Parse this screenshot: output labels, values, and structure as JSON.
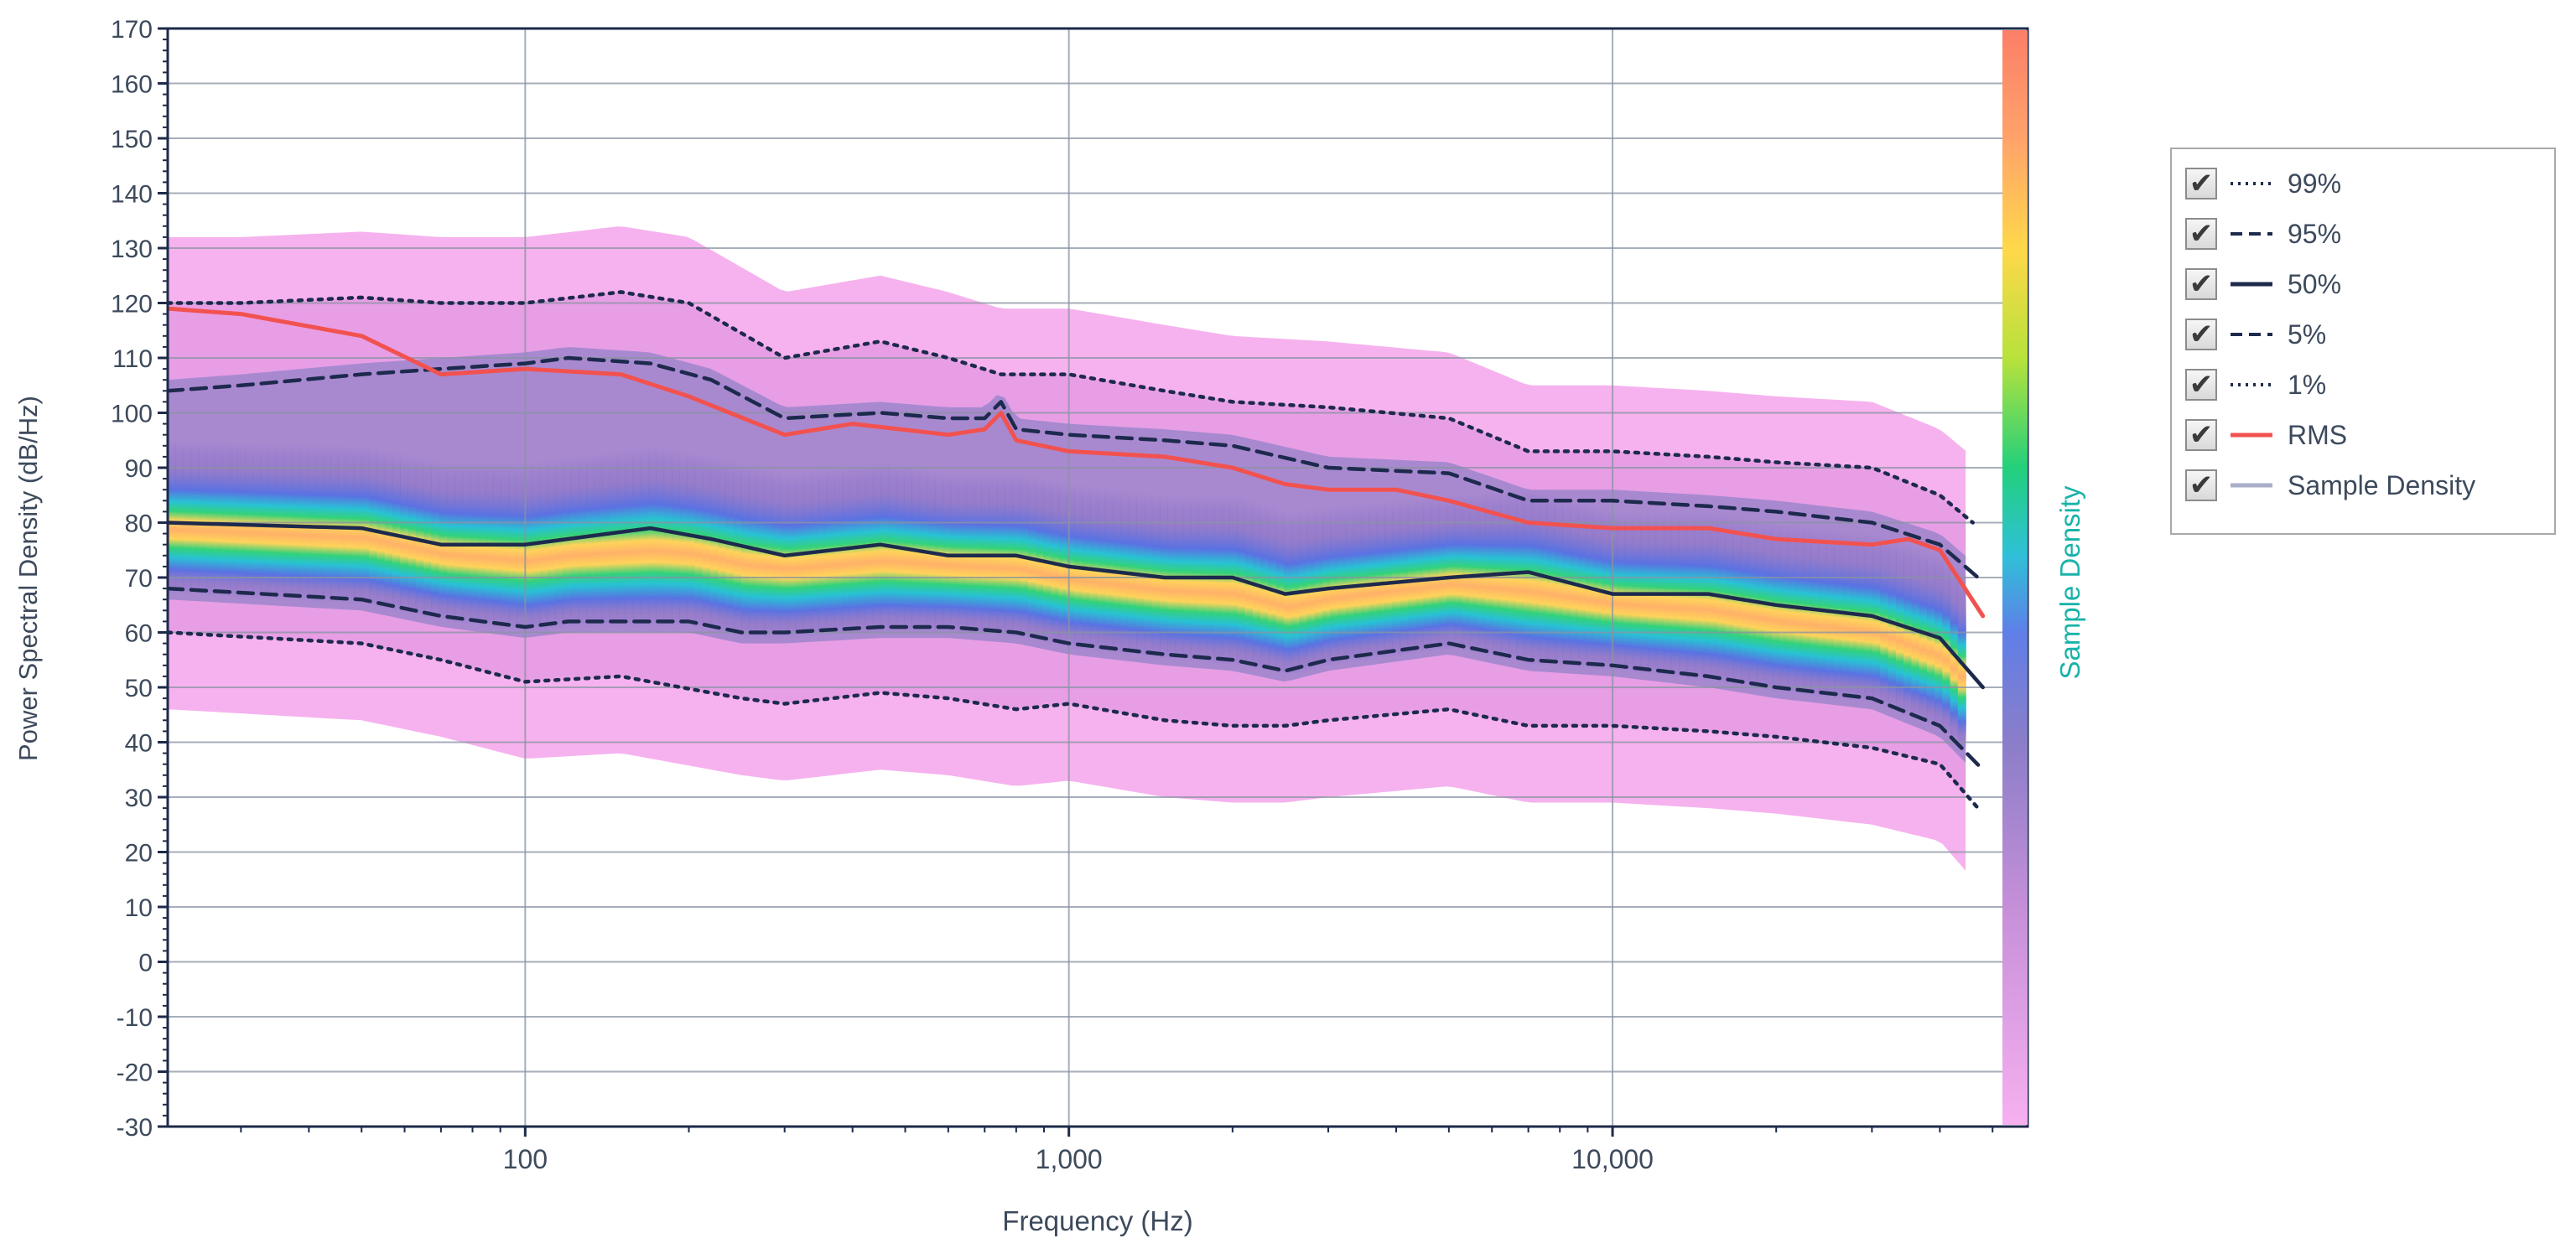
{
  "chart_data": {
    "type": "heatmap",
    "title": "",
    "xlabel": "Frequency (Hz)",
    "ylabel": "Power Spectral Density (dB/Hz)",
    "colorbar_label": "Sample Density",
    "x_scale": "log",
    "xlim": [
      22,
      58000
    ],
    "ylim": [
      -30,
      170
    ],
    "x_ticks": [
      {
        "value": 100,
        "label": "100"
      },
      {
        "value": 1000,
        "label": "1,000"
      },
      {
        "value": 10000,
        "label": "10,000"
      }
    ],
    "y_ticks": [
      {
        "value": 170,
        "label": "170"
      },
      {
        "value": 160,
        "label": "160"
      },
      {
        "value": 150,
        "label": "150"
      },
      {
        "value": 140,
        "label": "140"
      },
      {
        "value": 130,
        "label": "130"
      },
      {
        "value": 120,
        "label": "120"
      },
      {
        "value": 110,
        "label": "110"
      },
      {
        "value": 100,
        "label": "100"
      },
      {
        "value": 90,
        "label": "90"
      },
      {
        "value": 80,
        "label": "80"
      },
      {
        "value": 70,
        "label": "70"
      },
      {
        "value": 60,
        "label": "60"
      },
      {
        "value": 50,
        "label": "50"
      },
      {
        "value": 40,
        "label": "40"
      },
      {
        "value": 30,
        "label": "30"
      },
      {
        "value": 20,
        "label": "20"
      },
      {
        "value": 10,
        "label": "10"
      },
      {
        "value": 0,
        "label": "0"
      },
      {
        "value": -10,
        "label": "-10"
      },
      {
        "value": -20,
        "label": "-20"
      },
      {
        "value": -30,
        "label": "-30"
      }
    ],
    "grid": true,
    "legend_position": "right",
    "series": [
      {
        "name": "99%",
        "style": "dotted",
        "color": "#1d2a4d",
        "x": [
          22,
          30,
          50,
          70,
          100,
          150,
          200,
          300,
          450,
          600,
          750,
          1000,
          1500,
          2000,
          3000,
          5000,
          7000,
          10000,
          15000,
          20000,
          30000,
          40000,
          46000
        ],
        "y": [
          120,
          120,
          121,
          120,
          120,
          122,
          120,
          110,
          113,
          110,
          107,
          107,
          104,
          102,
          101,
          99,
          93,
          93,
          92,
          91,
          90,
          85,
          80
        ]
      },
      {
        "name": "95%",
        "style": "dashed",
        "color": "#1d2a4d",
        "x": [
          22,
          30,
          50,
          70,
          100,
          120,
          170,
          220,
          300,
          450,
          600,
          700,
          750,
          800,
          1000,
          1500,
          2000,
          3000,
          5000,
          7000,
          10000,
          15000,
          20000,
          30000,
          40000,
          47000
        ],
        "y": [
          104,
          105,
          107,
          108,
          109,
          110,
          109,
          106,
          99,
          100,
          99,
          99,
          102,
          97,
          96,
          95,
          94,
          90,
          89,
          84,
          84,
          83,
          82,
          80,
          76,
          70
        ]
      },
      {
        "name": "50%",
        "style": "solid",
        "color": "#1d2a4d",
        "x": [
          22,
          50,
          70,
          100,
          170,
          220,
          300,
          450,
          600,
          800,
          1000,
          1500,
          2000,
          2500,
          3000,
          5000,
          7000,
          10000,
          15000,
          20000,
          30000,
          40000,
          48000
        ],
        "y": [
          80,
          79,
          76,
          76,
          79,
          77,
          74,
          76,
          74,
          74,
          72,
          70,
          70,
          67,
          68,
          70,
          71,
          67,
          67,
          65,
          63,
          59,
          50
        ]
      },
      {
        "name": "5%",
        "style": "dashed",
        "color": "#1d2a4d",
        "x": [
          22,
          50,
          70,
          100,
          120,
          200,
          250,
          300,
          450,
          600,
          800,
          1000,
          1500,
          2000,
          2500,
          3000,
          5000,
          7000,
          10000,
          15000,
          20000,
          30000,
          40000,
          48000
        ],
        "y": [
          68,
          66,
          63,
          61,
          62,
          62,
          60,
          60,
          61,
          61,
          60,
          58,
          56,
          55,
          53,
          55,
          58,
          55,
          54,
          52,
          50,
          48,
          43,
          35
        ]
      },
      {
        "name": "1%",
        "style": "dotted",
        "color": "#1d2a4d",
        "x": [
          22,
          50,
          70,
          100,
          150,
          250,
          300,
          450,
          600,
          800,
          1000,
          1500,
          2000,
          2500,
          3000,
          5000,
          7000,
          10000,
          15000,
          20000,
          30000,
          40000,
          47000
        ],
        "y": [
          60,
          58,
          55,
          51,
          52,
          48,
          47,
          49,
          48,
          46,
          47,
          44,
          43,
          43,
          44,
          46,
          43,
          43,
          42,
          41,
          39,
          36,
          28
        ]
      },
      {
        "name": "RMS",
        "style": "solid",
        "color": "#f2524f",
        "x": [
          22,
          30,
          50,
          70,
          100,
          150,
          200,
          300,
          400,
          600,
          700,
          750,
          800,
          1000,
          1500,
          2000,
          2500,
          3000,
          4000,
          5000,
          7000,
          10000,
          15000,
          20000,
          30000,
          35000,
          40000,
          48000
        ],
        "y": [
          119,
          118,
          114,
          107,
          108,
          107,
          103,
          96,
          98,
          96,
          97,
          100,
          95,
          93,
          92,
          90,
          87,
          86,
          86,
          84,
          80,
          79,
          79,
          77,
          76,
          77,
          75,
          63
        ]
      }
    ],
    "density_legend_entry": "Sample Density"
  },
  "legend": {
    "items": [
      {
        "label": "99%",
        "swatch": "dotted",
        "color": "#1d2a4d",
        "checked": true
      },
      {
        "label": "95%",
        "swatch": "dashed",
        "color": "#1d2a4d",
        "checked": true
      },
      {
        "label": "50%",
        "swatch": "solid",
        "color": "#1d2a4d",
        "checked": true
      },
      {
        "label": "5%",
        "swatch": "dashed",
        "color": "#1d2a4d",
        "checked": true
      },
      {
        "label": "1%",
        "swatch": "dotted",
        "color": "#1d2a4d",
        "checked": true
      },
      {
        "label": "RMS",
        "swatch": "solid",
        "color": "#f2524f",
        "checked": true
      },
      {
        "label": "Sample Density",
        "swatch": "solid",
        "color": "#a9aec9",
        "checked": true
      }
    ]
  },
  "colors": {
    "axis": "#1e2a4a",
    "grid": "#8a93a3",
    "text": "#3d4a5c",
    "colorbar_label": "#19b3a8",
    "density_low": "#f4a8ea",
    "density_mid": "#8a84c8",
    "density_high": "#fb7f68"
  }
}
